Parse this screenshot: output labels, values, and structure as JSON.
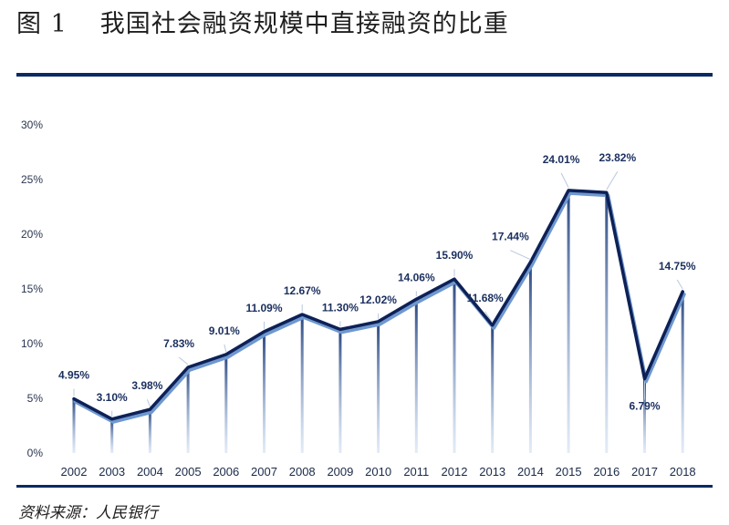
{
  "header": {
    "figure_no": "图 1",
    "title": "我国社会融资规模中直接融资的比重"
  },
  "footer": {
    "source": "资料来源：人民银行"
  },
  "colors": {
    "accent": "#0b2a63",
    "line_dark": "#0d2157",
    "line_light": "#6f98cf",
    "label": "#1b2f5e"
  },
  "chart_data": {
    "type": "line",
    "title": "",
    "xlabel": "",
    "ylabel": "",
    "categories": [
      "2002",
      "2003",
      "2004",
      "2005",
      "2006",
      "2007",
      "2008",
      "2009",
      "2010",
      "2011",
      "2012",
      "2013",
      "2014",
      "2015",
      "2016",
      "2017",
      "2018"
    ],
    "values": [
      4.95,
      3.1,
      3.98,
      7.83,
      9.01,
      11.09,
      12.67,
      11.3,
      12.02,
      14.06,
      15.9,
      11.68,
      17.44,
      24.01,
      23.82,
      6.79,
      14.75
    ],
    "data_labels": [
      "4.95%",
      "3.10%",
      "3.98%",
      "7.83%",
      "9.01%",
      "11.09%",
      "12.67%",
      "11.30%",
      "12.02%",
      "14.06%",
      "15.90%",
      "11.68%",
      "17.44%",
      "24.01%",
      "23.82%",
      "6.79%",
      "14.75%"
    ],
    "y_ticks": [
      "0%",
      "5%",
      "10%",
      "15%",
      "20%",
      "25%",
      "30%"
    ],
    "ylim": [
      0,
      30
    ],
    "grid": false,
    "drop_lines": true
  }
}
